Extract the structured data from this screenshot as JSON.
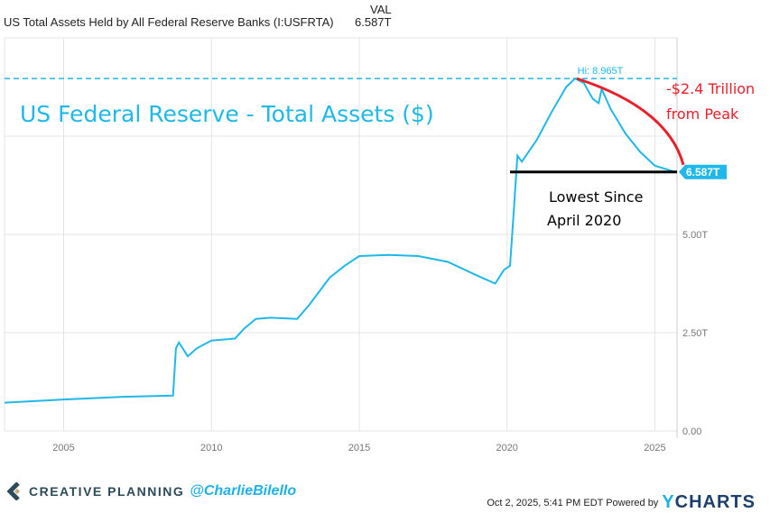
{
  "header": {
    "title": "US Total Assets Held by All Federal Reserve Banks (I:USFRTA)",
    "val_label": "VAL",
    "val_value": "6.587T"
  },
  "chart_data": {
    "type": "line",
    "title": "US Federal Reserve - Total Assets ($)",
    "xlabel": "",
    "ylabel": "",
    "xlim": [
      2003,
      2025.75
    ],
    "ylim": [
      0,
      10
    ],
    "x_ticks": [
      "2005",
      "2010",
      "2015",
      "2020",
      "2025"
    ],
    "y_ticks": [
      "0.00",
      "2.50T",
      "5.00T"
    ],
    "grid": true,
    "color": "#1fb8e8",
    "series": [
      {
        "x": [
          2003,
          2005,
          2007,
          2008.7,
          2008.8,
          2008.9,
          2009.2,
          2009.5,
          2010,
          2010.8,
          2011.1,
          2011.5,
          2012,
          2012.9,
          2013.3,
          2014,
          2014.5,
          2015,
          2016,
          2017,
          2018,
          2019,
          2019.6,
          2019.9,
          2020.1,
          2020.2,
          2020.35,
          2020.5,
          2021,
          2021.5,
          2022,
          2022.3,
          2022.6,
          2022.9,
          2023.1,
          2023.2,
          2023.5,
          2024,
          2024.5,
          2025,
          2025.7
        ],
        "y": [
          0.72,
          0.8,
          0.87,
          0.9,
          2.1,
          2.25,
          1.9,
          2.1,
          2.3,
          2.35,
          2.6,
          2.85,
          2.88,
          2.85,
          3.2,
          3.9,
          4.2,
          4.45,
          4.48,
          4.45,
          4.3,
          3.95,
          3.75,
          4.1,
          4.2,
          5.3,
          7.0,
          6.85,
          7.4,
          8.1,
          8.75,
          8.965,
          8.85,
          8.45,
          8.34,
          8.7,
          8.2,
          7.57,
          7.1,
          6.75,
          6.587
        ]
      }
    ],
    "annotations": {
      "high_label": "Hi: 8.965T",
      "high_value": 8.965,
      "last_label": "6.587T",
      "last_value": 6.587,
      "drop_text_1": "-$2.4 Trillion",
      "drop_text_2": "from Peak",
      "low_text_1": "Lowest Since",
      "low_text_2": "April 2020"
    }
  },
  "footer": {
    "brand": "CREATIVE PLANNING",
    "handle": "@CharlieBilello",
    "timestamp": "Oct 2, 2025, 5:41 PM EDT Powered by",
    "ycharts_y": "Y",
    "ycharts_rest": "CHARTS"
  },
  "colors": {
    "line": "#1fb8e8",
    "annotation_red": "#e8202a",
    "black_line": "#000000"
  }
}
